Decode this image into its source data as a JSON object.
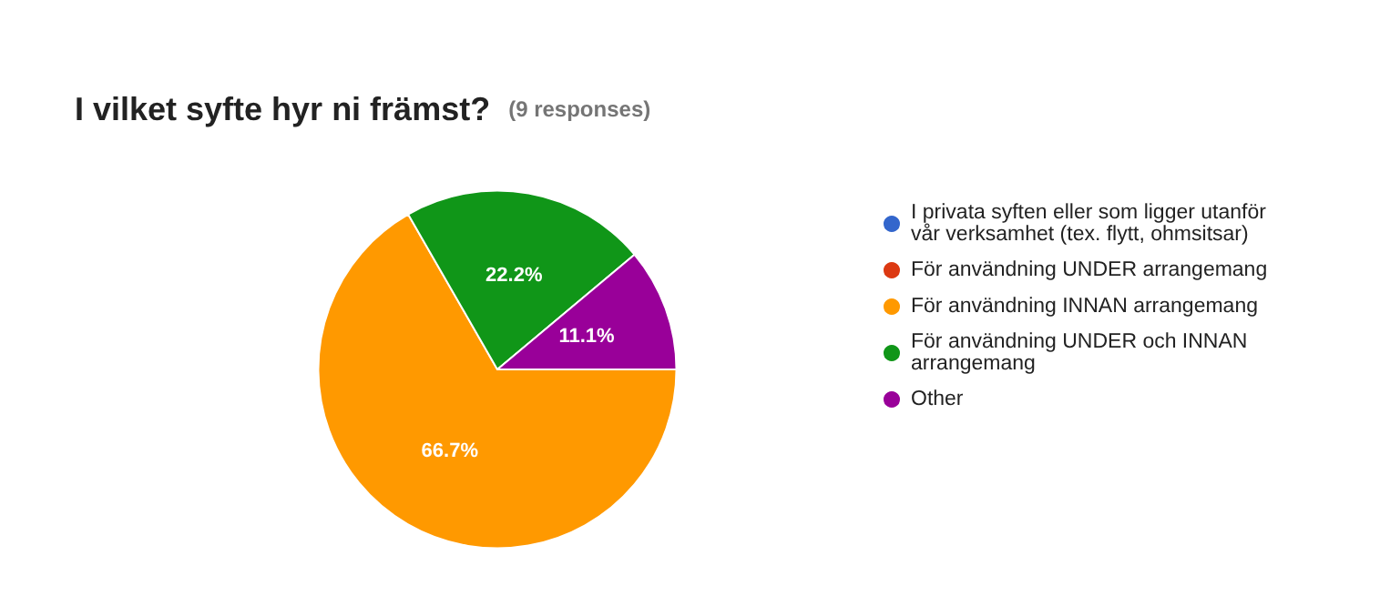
{
  "chart_data": {
    "type": "pie",
    "title": "I vilket syfte hyr ni främst?",
    "subtitle": "(9 responses)",
    "categories": [
      "I privata syften eller som ligger utanför vår verksamhet (tex. flytt, ohmsitsar)",
      "För användning UNDER arrangemang",
      "För användning INNAN arrangemang",
      "För användning UNDER och INNAN arrangemang",
      "Other"
    ],
    "values": [
      0,
      0,
      66.7,
      22.2,
      11.1
    ],
    "value_labels": [
      null,
      null,
      "66.7%",
      "22.2%",
      "11.1%"
    ],
    "colors": [
      "#3366cc",
      "#dc3912",
      "#ff9900",
      "#109618",
      "#990099"
    ],
    "legend": "right"
  }
}
